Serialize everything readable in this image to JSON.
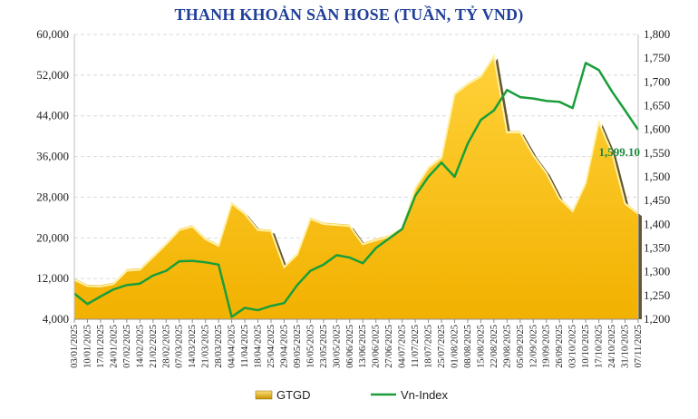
{
  "chart_data": {
    "type": "area+line",
    "title": "THANH KHOẢN SÀN HOSE (TUẦN, TỶ VND)",
    "x": [
      "03/01/2025",
      "10/01/2025",
      "17/01/2025",
      "24/01/2025",
      "07/02/2025",
      "14/02/2025",
      "21/02/2025",
      "28/02/2025",
      "07/03/2025",
      "14/03/2025",
      "21/03/2025",
      "28/03/2025",
      "04/04/2025",
      "11/04/2025",
      "18/04/2025",
      "25/04/2025",
      "29/04/2025",
      "09/05/2025",
      "16/05/2025",
      "23/05/2025",
      "30/05/2025",
      "06/06/2025",
      "13/06/2025",
      "20/06/2025",
      "27/06/2025",
      "04/07/2025",
      "11/07/2025",
      "18/07/2025",
      "25/07/2025",
      "01/08/2025",
      "08/08/2025",
      "15/08/2025",
      "22/08/2025",
      "29/08/2025",
      "05/09/2025",
      "12/09/2025",
      "19/09/2025",
      "26/09/2025",
      "03/10/2025",
      "10/10/2025",
      "17/10/2025",
      "24/10/2025",
      "31/10/2025",
      "07/11/2025"
    ],
    "series": [
      {
        "name": "GTGD",
        "axis": "left",
        "type": "area",
        "color": "#ffc000",
        "values": [
          12000,
          10800,
          10700,
          11200,
          13800,
          14000,
          16500,
          19000,
          21800,
          22500,
          20000,
          18700,
          27000,
          25000,
          21800,
          21600,
          14500,
          17000,
          24000,
          23000,
          22800,
          22600,
          19000,
          19800,
          20500,
          22000,
          30000,
          34000,
          36000,
          48500,
          50500,
          52000,
          56000,
          41000,
          41000,
          36500,
          33000,
          28000,
          25500,
          31000,
          43000,
          37000,
          27000,
          25000
        ]
      },
      {
        "name": "Vn-Index",
        "axis": "right",
        "type": "line",
        "color": "#1a9e3a",
        "values": [
          1254,
          1232,
          1248,
          1263,
          1272,
          1275,
          1292,
          1302,
          1322,
          1323,
          1320,
          1315,
          1205,
          1224,
          1219,
          1228,
          1234,
          1272,
          1302,
          1315,
          1335,
          1330,
          1318,
          1350,
          1370,
          1390,
          1460,
          1500,
          1530,
          1500,
          1570,
          1620,
          1640,
          1683,
          1668,
          1665,
          1660,
          1658,
          1645,
          1740,
          1725,
          1680,
          1640,
          1599.1
        ]
      }
    ],
    "y_left": {
      "min": 4000,
      "max": 60000,
      "ticks": [
        "4,000",
        "12,000",
        "20,000",
        "28,000",
        "36,000",
        "44,000",
        "52,000",
        "60,000"
      ]
    },
    "y_right": {
      "min": 1200,
      "max": 1800,
      "ticks": [
        "1,200",
        "1,250",
        "1,300",
        "1,350",
        "1,400",
        "1,450",
        "1,500",
        "1,550",
        "1,600",
        "1,650",
        "1,700",
        "1,750",
        "1,800"
      ]
    },
    "last_value_label": "1,599.10",
    "grid": true,
    "legend": {
      "position": "bottom",
      "items": [
        "GTGD",
        "Vn-Index"
      ]
    }
  }
}
